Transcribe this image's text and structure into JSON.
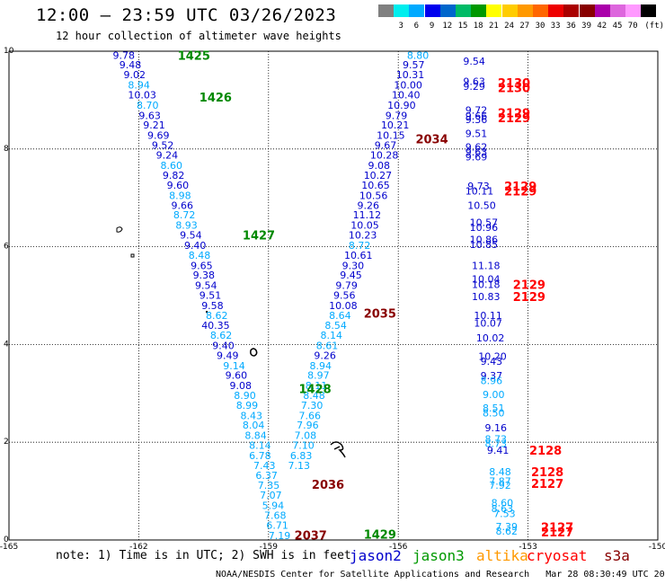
{
  "header": {
    "title": "12:00 – 23:59 UTC 03/26/2023",
    "subtitle": "12 hour collection of altimeter wave heights"
  },
  "legend": {
    "unit": "(ft)",
    "colors": [
      "#808080",
      "#00eeee",
      "#00aaff",
      "#0000ee",
      "#0066cc",
      "#00bb66",
      "#009900",
      "#ffff00",
      "#ffcc00",
      "#ff9900",
      "#ff6600",
      "#ee0000",
      "#aa0000",
      "#880000",
      "#aa00aa",
      "#dd66dd",
      "#ff99ff",
      "#000000"
    ],
    "labels": [
      "3",
      "6",
      "9",
      "12",
      "15",
      "18",
      "21",
      "24",
      "27",
      "30",
      "33",
      "36",
      "39",
      "42",
      "45",
      "70"
    ]
  },
  "axes": {
    "x_ticks": [
      "-165",
      "-162",
      "-159",
      "-156",
      "-153",
      "-150"
    ],
    "y_ticks": [
      "0",
      "2",
      "4",
      "6",
      "8",
      "10"
    ]
  },
  "track_labels": [
    {
      "text": "1425",
      "lon": -161.1,
      "lat": 9.92,
      "color": "#008800"
    },
    {
      "text": "1426",
      "lon": -160.6,
      "lat": 9.06,
      "color": "#008800"
    },
    {
      "text": "1427",
      "lon": -159.6,
      "lat": 6.24,
      "color": "#008800"
    },
    {
      "text": "1428",
      "lon": -158.3,
      "lat": 3.1,
      "color": "#008800"
    },
    {
      "text": "1429",
      "lon": -156.8,
      "lat": 0.12,
      "color": "#008800"
    },
    {
      "text": "2034",
      "lon": -155.6,
      "lat": 8.21,
      "color": "#880000"
    },
    {
      "text": "2035",
      "lon": -156.8,
      "lat": 4.64,
      "color": "#880000"
    },
    {
      "text": "2036",
      "lon": -158.0,
      "lat": 1.14,
      "color": "#880000"
    },
    {
      "text": "2037",
      "lon": -158.4,
      "lat": 0.1,
      "color": "#880000"
    },
    {
      "text": "2130",
      "lon": -153.7,
      "lat": 9.36,
      "color": "#ff0000"
    },
    {
      "text": "2130",
      "lon": -153.7,
      "lat": 9.26,
      "color": "#ff0000"
    },
    {
      "text": "2129",
      "lon": -153.7,
      "lat": 8.74,
      "color": "#ff0000"
    },
    {
      "text": "2129",
      "lon": -153.7,
      "lat": 8.64,
      "color": "#ff0000"
    },
    {
      "text": "2129",
      "lon": -153.55,
      "lat": 7.24,
      "color": "#ff0000"
    },
    {
      "text": "2129",
      "lon": -153.55,
      "lat": 7.14,
      "color": "#ff0000"
    },
    {
      "text": "2129",
      "lon": -153.35,
      "lat": 5.23,
      "color": "#ff0000"
    },
    {
      "text": "2129",
      "lon": -153.35,
      "lat": 4.98,
      "color": "#ff0000"
    },
    {
      "text": "2128",
      "lon": -152.97,
      "lat": 1.84,
      "color": "#ff0000"
    },
    {
      "text": "2128",
      "lon": -152.93,
      "lat": 1.4,
      "color": "#ff0000"
    },
    {
      "text": "2127",
      "lon": -152.93,
      "lat": 1.16,
      "color": "#ff0000"
    },
    {
      "text": "2127",
      "lon": -152.7,
      "lat": 0.27,
      "color": "#ff0000"
    },
    {
      "text": "2127",
      "lon": -152.7,
      "lat": 0.17,
      "color": "#ff0000"
    }
  ],
  "wave_heights": [
    {
      "text": "9.78",
      "lon": -162.6,
      "lat": 9.92,
      "color": "#0000cc"
    },
    {
      "text": "9.48",
      "lon": -162.45,
      "lat": 9.72,
      "color": "#0000cc"
    },
    {
      "text": "9.02",
      "lon": -162.35,
      "lat": 9.52,
      "color": "#0000cc"
    },
    {
      "text": "8.94",
      "lon": -162.25,
      "lat": 9.31,
      "color": "#00aaff"
    },
    {
      "text": "10.03",
      "lon": -162.25,
      "lat": 9.11,
      "color": "#0000cc"
    },
    {
      "text": "8.70",
      "lon": -162.05,
      "lat": 8.9,
      "color": "#00aaff"
    },
    {
      "text": "9.63",
      "lon": -162.0,
      "lat": 8.69,
      "color": "#0000cc"
    },
    {
      "text": "9.21",
      "lon": -161.9,
      "lat": 8.49,
      "color": "#0000cc"
    },
    {
      "text": "9.69",
      "lon": -161.8,
      "lat": 8.28,
      "color": "#0000cc"
    },
    {
      "text": "9.52",
      "lon": -161.7,
      "lat": 8.08,
      "color": "#0000cc"
    },
    {
      "text": "9.24",
      "lon": -161.6,
      "lat": 7.88,
      "color": "#0000cc"
    },
    {
      "text": "8.60",
      "lon": -161.5,
      "lat": 7.67,
      "color": "#00aaff"
    },
    {
      "text": "9.82",
      "lon": -161.45,
      "lat": 7.46,
      "color": "#0000cc"
    },
    {
      "text": "9.60",
      "lon": -161.35,
      "lat": 7.26,
      "color": "#0000cc"
    },
    {
      "text": "8.98",
      "lon": -161.3,
      "lat": 7.05,
      "color": "#00aaff"
    },
    {
      "text": "9.66",
      "lon": -161.25,
      "lat": 6.85,
      "color": "#0000cc"
    },
    {
      "text": "8.72",
      "lon": -161.2,
      "lat": 6.65,
      "color": "#00aaff"
    },
    {
      "text": "8.93",
      "lon": -161.15,
      "lat": 6.44,
      "color": "#00aaff"
    },
    {
      "text": "9.54",
      "lon": -161.05,
      "lat": 6.24,
      "color": "#0000cc"
    },
    {
      "text": "9.40",
      "lon": -160.95,
      "lat": 6.03,
      "color": "#0000cc"
    },
    {
      "text": "8.48",
      "lon": -160.85,
      "lat": 5.83,
      "color": "#00aaff"
    },
    {
      "text": "9.65",
      "lon": -160.8,
      "lat": 5.62,
      "color": "#0000cc"
    },
    {
      "text": "9.38",
      "lon": -160.75,
      "lat": 5.42,
      "color": "#0000cc"
    },
    {
      "text": "9.54",
      "lon": -160.7,
      "lat": 5.21,
      "color": "#0000cc"
    },
    {
      "text": "9.51",
      "lon": -160.6,
      "lat": 5.01,
      "color": "#0000cc"
    },
    {
      "text": "9.58",
      "lon": -160.55,
      "lat": 4.8,
      "color": "#0000cc"
    },
    {
      "text": "8.62",
      "lon": -160.45,
      "lat": 4.6,
      "color": "#00aaff"
    },
    {
      "text": "40.35",
      "lon": -160.55,
      "lat": 4.39,
      "color": "#0000cc"
    },
    {
      "text": "8.62",
      "lon": -160.35,
      "lat": 4.19,
      "color": "#00aaff"
    },
    {
      "text": "9.40",
      "lon": -160.3,
      "lat": 3.98,
      "color": "#0000cc"
    },
    {
      "text": "9.49",
      "lon": -160.2,
      "lat": 3.78,
      "color": "#0000cc"
    },
    {
      "text": "9.14",
      "lon": -160.05,
      "lat": 3.57,
      "color": "#00aaff"
    },
    {
      "text": "9.60",
      "lon": -160.0,
      "lat": 3.37,
      "color": "#0000cc"
    },
    {
      "text": "9.08",
      "lon": -159.9,
      "lat": 3.16,
      "color": "#0000cc"
    },
    {
      "text": "8.90",
      "lon": -159.8,
      "lat": 2.96,
      "color": "#00aaff"
    },
    {
      "text": "8.99",
      "lon": -159.75,
      "lat": 2.76,
      "color": "#00aaff"
    },
    {
      "text": "8.43",
      "lon": -159.65,
      "lat": 2.55,
      "color": "#00aaff"
    },
    {
      "text": "8.04",
      "lon": -159.6,
      "lat": 2.35,
      "color": "#00aaff"
    },
    {
      "text": "8.84",
      "lon": -159.55,
      "lat": 2.14,
      "color": "#00aaff"
    },
    {
      "text": "8.14",
      "lon": -159.45,
      "lat": 1.94,
      "color": "#00aaff"
    },
    {
      "text": "6.78",
      "lon": -159.45,
      "lat": 1.73,
      "color": "#00aaff"
    },
    {
      "text": "7.43",
      "lon": -159.35,
      "lat": 1.53,
      "color": "#00aaff"
    },
    {
      "text": "6.37",
      "lon": -159.3,
      "lat": 1.32,
      "color": "#00aaff"
    },
    {
      "text": "7.35",
      "lon": -159.25,
      "lat": 1.12,
      "color": "#00aaff"
    },
    {
      "text": "7.07",
      "lon": -159.2,
      "lat": 0.92,
      "color": "#00aaff"
    },
    {
      "text": "5.94",
      "lon": -159.15,
      "lat": 0.71,
      "color": "#00aaff"
    },
    {
      "text": "7.68",
      "lon": -159.1,
      "lat": 0.51,
      "color": "#00aaff"
    },
    {
      "text": "6.71",
      "lon": -159.05,
      "lat": 0.3,
      "color": "#00aaff"
    },
    {
      "text": "7.19",
      "lon": -159.0,
      "lat": 0.09,
      "color": "#00aaff"
    },
    {
      "text": "8.80",
      "lon": -155.8,
      "lat": 9.92,
      "color": "#00aaff"
    },
    {
      "text": "9.57",
      "lon": -155.9,
      "lat": 9.72,
      "color": "#0000cc"
    },
    {
      "text": "10.31",
      "lon": -156.05,
      "lat": 9.52,
      "color": "#0000cc"
    },
    {
      "text": "10.00",
      "lon": -156.1,
      "lat": 9.31,
      "color": "#0000cc"
    },
    {
      "text": "10.40",
      "lon": -156.15,
      "lat": 9.11,
      "color": "#0000cc"
    },
    {
      "text": "10.90",
      "lon": -156.25,
      "lat": 8.9,
      "color": "#0000cc"
    },
    {
      "text": "9.79",
      "lon": -156.3,
      "lat": 8.69,
      "color": "#0000cc"
    },
    {
      "text": "10.21",
      "lon": -156.4,
      "lat": 8.49,
      "color": "#0000cc"
    },
    {
      "text": "10.15",
      "lon": -156.5,
      "lat": 8.28,
      "color": "#0000cc"
    },
    {
      "text": "9.67",
      "lon": -156.55,
      "lat": 8.08,
      "color": "#0000cc"
    },
    {
      "text": "10.28",
      "lon": -156.65,
      "lat": 7.88,
      "color": "#0000cc"
    },
    {
      "text": "9.08",
      "lon": -156.7,
      "lat": 7.67,
      "color": "#0000cc"
    },
    {
      "text": "10.27",
      "lon": -156.8,
      "lat": 7.46,
      "color": "#0000cc"
    },
    {
      "text": "10.65",
      "lon": -156.85,
      "lat": 7.26,
      "color": "#0000cc"
    },
    {
      "text": "10.56",
      "lon": -156.9,
      "lat": 7.05,
      "color": "#0000cc"
    },
    {
      "text": "9.26",
      "lon": -156.95,
      "lat": 6.85,
      "color": "#0000cc"
    },
    {
      "text": "11.12",
      "lon": -157.05,
      "lat": 6.65,
      "color": "#0000cc"
    },
    {
      "text": "10.05",
      "lon": -157.1,
      "lat": 6.44,
      "color": "#0000cc"
    },
    {
      "text": "10.23",
      "lon": -157.15,
      "lat": 6.24,
      "color": "#0000cc"
    },
    {
      "text": "8.72",
      "lon": -157.15,
      "lat": 6.03,
      "color": "#00aaff"
    },
    {
      "text": "10.61",
      "lon": -157.25,
      "lat": 5.83,
      "color": "#0000cc"
    },
    {
      "text": "9.30",
      "lon": -157.3,
      "lat": 5.62,
      "color": "#0000cc"
    },
    {
      "text": "9.45",
      "lon": -157.35,
      "lat": 5.42,
      "color": "#0000cc"
    },
    {
      "text": "9.79",
      "lon": -157.45,
      "lat": 5.21,
      "color": "#0000cc"
    },
    {
      "text": "9.56",
      "lon": -157.5,
      "lat": 5.01,
      "color": "#0000cc"
    },
    {
      "text": "10.08",
      "lon": -157.6,
      "lat": 4.8,
      "color": "#0000cc"
    },
    {
      "text": "8.64",
      "lon": -157.6,
      "lat": 4.6,
      "color": "#00aaff"
    },
    {
      "text": "8.54",
      "lon": -157.7,
      "lat": 4.39,
      "color": "#00aaff"
    },
    {
      "text": "8.14",
      "lon": -157.8,
      "lat": 4.19,
      "color": "#00aaff"
    },
    {
      "text": "8.61",
      "lon": -157.9,
      "lat": 3.98,
      "color": "#00aaff"
    },
    {
      "text": "9.26",
      "lon": -157.95,
      "lat": 3.78,
      "color": "#0000cc"
    },
    {
      "text": "8.94",
      "lon": -158.05,
      "lat": 3.57,
      "color": "#00aaff"
    },
    {
      "text": "8.97",
      "lon": -158.1,
      "lat": 3.37,
      "color": "#00aaff"
    },
    {
      "text": "8.11",
      "lon": -158.15,
      "lat": 3.16,
      "color": "#00aaff"
    },
    {
      "text": "8.48",
      "lon": -158.2,
      "lat": 2.96,
      "color": "#00aaff"
    },
    {
      "text": "7.30",
      "lon": -158.25,
      "lat": 2.76,
      "color": "#00aaff"
    },
    {
      "text": "7.66",
      "lon": -158.3,
      "lat": 2.55,
      "color": "#00aaff"
    },
    {
      "text": "7.96",
      "lon": -158.35,
      "lat": 2.35,
      "color": "#00aaff"
    },
    {
      "text": "7.08",
      "lon": -158.4,
      "lat": 2.14,
      "color": "#00aaff"
    },
    {
      "text": "7.10",
      "lon": -158.45,
      "lat": 1.94,
      "color": "#00aaff"
    },
    {
      "text": "6.83",
      "lon": -158.5,
      "lat": 1.73,
      "color": "#00aaff"
    },
    {
      "text": "7.13",
      "lon": -158.55,
      "lat": 1.53,
      "color": "#00aaff"
    },
    {
      "text": "9.54",
      "lon": -154.5,
      "lat": 9.8,
      "color": "#0000cc"
    },
    {
      "text": "9.63",
      "lon": -154.5,
      "lat": 9.38,
      "color": "#0000cc"
    },
    {
      "text": "9.29",
      "lon": -154.5,
      "lat": 9.28,
      "color": "#0000cc"
    },
    {
      "text": "9.72",
      "lon": -154.45,
      "lat": 8.8,
      "color": "#0000cc"
    },
    {
      "text": "9.66",
      "lon": -154.45,
      "lat": 8.68,
      "color": "#0000cc"
    },
    {
      "text": "9.36",
      "lon": -154.45,
      "lat": 8.6,
      "color": "#0000cc"
    },
    {
      "text": "9.51",
      "lon": -154.45,
      "lat": 8.32,
      "color": "#0000cc"
    },
    {
      "text": "9.62",
      "lon": -154.45,
      "lat": 8.04,
      "color": "#0000cc"
    },
    {
      "text": "9.63",
      "lon": -154.45,
      "lat": 7.94,
      "color": "#0000cc"
    },
    {
      "text": "9.69",
      "lon": -154.45,
      "lat": 7.84,
      "color": "#0000cc"
    },
    {
      "text": "9.73",
      "lon": -154.4,
      "lat": 7.24,
      "color": "#0000cc"
    },
    {
      "text": "10.11",
      "lon": -154.45,
      "lat": 7.14,
      "color": "#0000cc"
    },
    {
      "text": "10.50",
      "lon": -154.4,
      "lat": 6.85,
      "color": "#0000cc"
    },
    {
      "text": "10.57",
      "lon": -154.35,
      "lat": 6.5,
      "color": "#0000cc"
    },
    {
      "text": "10.96",
      "lon": -154.35,
      "lat": 6.4,
      "color": "#0000cc"
    },
    {
      "text": "10.86",
      "lon": -154.35,
      "lat": 6.15,
      "color": "#0000cc"
    },
    {
      "text": "10.85",
      "lon": -154.35,
      "lat": 6.05,
      "color": "#0000cc"
    },
    {
      "text": "11.18",
      "lon": -154.3,
      "lat": 5.62,
      "color": "#0000cc"
    },
    {
      "text": "10.04",
      "lon": -154.3,
      "lat": 5.34,
      "color": "#0000cc"
    },
    {
      "text": "10.18",
      "lon": -154.3,
      "lat": 5.23,
      "color": "#0000cc"
    },
    {
      "text": "10.83",
      "lon": -154.3,
      "lat": 4.98,
      "color": "#0000cc"
    },
    {
      "text": "10.11",
      "lon": -154.25,
      "lat": 4.6,
      "color": "#0000cc"
    },
    {
      "text": "10.07",
      "lon": -154.25,
      "lat": 4.44,
      "color": "#0000cc"
    },
    {
      "text": "10.02",
      "lon": -154.2,
      "lat": 4.14,
      "color": "#0000cc"
    },
    {
      "text": "10.20",
      "lon": -154.15,
      "lat": 3.76,
      "color": "#0000cc"
    },
    {
      "text": "9.43",
      "lon": -154.1,
      "lat": 3.66,
      "color": "#0000cc"
    },
    {
      "text": "9.37",
      "lon": -154.1,
      "lat": 3.36,
      "color": "#0000cc"
    },
    {
      "text": "8.96",
      "lon": -154.1,
      "lat": 3.26,
      "color": "#00aaff"
    },
    {
      "text": "9.00",
      "lon": -154.05,
      "lat": 2.98,
      "color": "#00aaff"
    },
    {
      "text": "8.51",
      "lon": -154.05,
      "lat": 2.7,
      "color": "#00aaff"
    },
    {
      "text": "8.50",
      "lon": -154.05,
      "lat": 2.6,
      "color": "#00aaff"
    },
    {
      "text": "9.16",
      "lon": -154.0,
      "lat": 2.3,
      "color": "#0000cc"
    },
    {
      "text": "8.73",
      "lon": -154.0,
      "lat": 2.07,
      "color": "#00aaff"
    },
    {
      "text": "8.73",
      "lon": -154.0,
      "lat": 1.98,
      "color": "#00aaff"
    },
    {
      "text": "9.41",
      "lon": -153.95,
      "lat": 1.84,
      "color": "#0000cc"
    },
    {
      "text": "8.48",
      "lon": -153.9,
      "lat": 1.4,
      "color": "#00aaff"
    },
    {
      "text": "7.87",
      "lon": -153.9,
      "lat": 1.2,
      "color": "#00aaff"
    },
    {
      "text": "7.92",
      "lon": -153.9,
      "lat": 1.12,
      "color": "#00aaff"
    },
    {
      "text": "8.60",
      "lon": -153.85,
      "lat": 0.76,
      "color": "#00aaff"
    },
    {
      "text": "8.63",
      "lon": -153.85,
      "lat": 0.64,
      "color": "#00aaff"
    },
    {
      "text": "7.53",
      "lon": -153.8,
      "lat": 0.54,
      "color": "#00aaff"
    },
    {
      "text": "7.39",
      "lon": -153.75,
      "lat": 0.28,
      "color": "#00aaff"
    },
    {
      "text": "8.62",
      "lon": -153.75,
      "lat": 0.18,
      "color": "#00aaff"
    }
  ],
  "footer": {
    "note": "note: 1) Time is in UTC; 2) SWH is in feet",
    "satellites": [
      {
        "name": "jason2",
        "color": "#0000cc"
      },
      {
        "name": "jason3",
        "color": "#009900"
      },
      {
        "name": "altika",
        "color": "#ff9900"
      },
      {
        "name": "cryosat",
        "color": "#ff0000"
      },
      {
        "name": "s3a",
        "color": "#880000"
      }
    ],
    "credit": "NOAA/NESDIS Center for Satellite Applications and Research   Mar 28 08:30:49 UTC 2023"
  }
}
